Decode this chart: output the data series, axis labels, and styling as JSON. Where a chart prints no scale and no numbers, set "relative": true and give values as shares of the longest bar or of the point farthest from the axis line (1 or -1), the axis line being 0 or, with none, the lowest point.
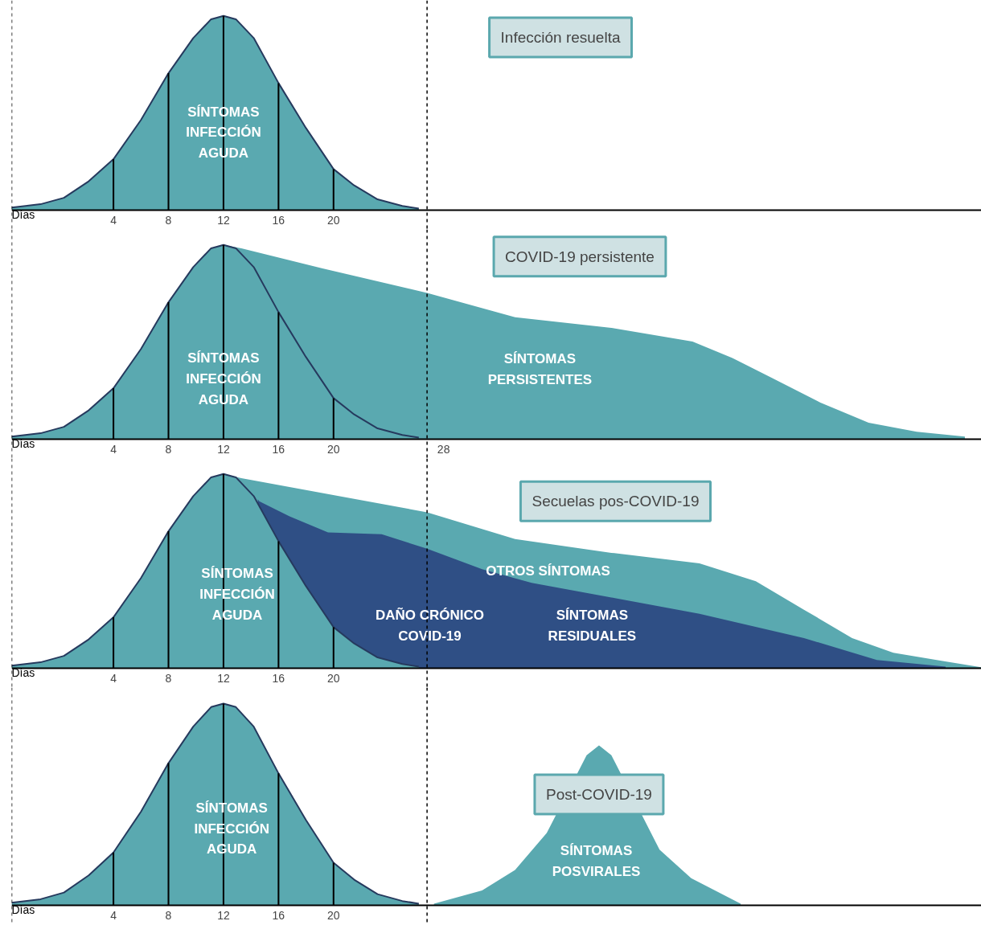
{
  "chart_data": [
    {
      "type": "area",
      "title": "Infección resuelta",
      "xlabel": "Días",
      "relative": true,
      "xlim": [
        -3.4,
        67.1
      ],
      "xticks": [
        4,
        8,
        12,
        16,
        20
      ],
      "series": [
        {
          "color": "#5aa9b0",
          "x": [
            -3.4,
            -1.3,
            0.4,
            2.2,
            4,
            6,
            8,
            9.8,
            11.1,
            12,
            12.9,
            14.2,
            16,
            18,
            20,
            21.5,
            23.2,
            25,
            26.2
          ],
          "values": [
            0.013,
            0.03,
            0.063,
            0.148,
            0.262,
            0.464,
            0.705,
            0.886,
            0.983,
            1,
            0.983,
            0.886,
            0.654,
            0.422,
            0.211,
            0.127,
            0.055,
            0.021,
            0.008
          ]
        },
        {
          "type": "bar",
          "color": "#000000",
          "x": [
            4,
            8,
            12,
            16,
            20
          ],
          "values": [
            0.262,
            0.705,
            1,
            0.654,
            0.211
          ]
        }
      ],
      "annotations": [
        "SÍNTOMAS\nINFECCIÓN\nAGUDA"
      ],
      "ref_lines": [
        {
          "axis": "x",
          "value": -3.4,
          "line_style": "dashed"
        },
        {
          "axis": "x",
          "value": 26.8,
          "line_style": "dashed"
        }
      ]
    },
    {
      "type": "area",
      "title": "COVID-19 persistente",
      "xlabel": "Días",
      "relative": true,
      "xlim": [
        -3.4,
        67.1
      ],
      "xticks": [
        4,
        8,
        12,
        16,
        20,
        28
      ],
      "series": [
        {
          "color": "#5aa9b0",
          "x": [
            12,
            13.3,
            19.2,
            26.8,
            33.2,
            40.2,
            46.1,
            49,
            51.9,
            55.4,
            58.9,
            62.4,
            65.9
          ],
          "values": [
            1,
            0.983,
            0.879,
            0.753,
            0.628,
            0.573,
            0.502,
            0.418,
            0.314,
            0.188,
            0.084,
            0.038,
            0.013
          ]
        },
        {
          "color": "#5aa9b0",
          "x": [
            -3.4,
            -1.3,
            0.4,
            2.2,
            4,
            6,
            8,
            9.8,
            11.1,
            12,
            12.9,
            14.2,
            16,
            18,
            20,
            21.5,
            23.2,
            25,
            26.2
          ],
          "values": [
            0.013,
            0.03,
            0.063,
            0.148,
            0.262,
            0.464,
            0.705,
            0.886,
            0.983,
            1,
            0.983,
            0.886,
            0.654,
            0.422,
            0.211,
            0.127,
            0.055,
            0.021,
            0.008
          ]
        },
        {
          "type": "bar",
          "color": "#000000",
          "x": [
            4,
            8,
            12,
            16,
            20
          ],
          "values": [
            0.262,
            0.705,
            1,
            0.654,
            0.211
          ]
        }
      ],
      "annotations": [
        "SÍNTOMAS\nINFECCIÓN\nAGUDA",
        "SÍNTOMAS\nPERSISTENTES"
      ],
      "ref_lines": [
        {
          "axis": "x",
          "value": -3.4,
          "line_style": "dashed"
        },
        {
          "axis": "x",
          "value": 26.8,
          "line_style": "dashed"
        }
      ]
    },
    {
      "type": "area",
      "title": "Secuelas pos-COVID-19",
      "xlabel": "Días",
      "relative": true,
      "xlim": [
        -3.4,
        67.1
      ],
      "xticks": [
        4,
        8,
        12,
        16,
        20
      ],
      "series": [
        {
          "color": "#5aa9b0",
          "x": [
            12,
            13.3,
            20.3,
            26.8,
            33.2,
            40.2,
            46.6,
            50.7,
            54.2,
            57.7,
            60.7,
            64.2,
            67.1
          ],
          "values": [
            1,
            0.979,
            0.887,
            0.803,
            0.665,
            0.594,
            0.54,
            0.448,
            0.301,
            0.155,
            0.079,
            0.038,
            0.004
          ]
        },
        {
          "color": "#2f4f85",
          "x": [
            14.5,
            14.6,
            16.8,
            19.6,
            23.5,
            26.8,
            30.8,
            34.4,
            40.2,
            46.6,
            54.2,
            59.5,
            64.5
          ],
          "values": [
            0.87,
            0.86,
            0.782,
            0.699,
            0.69,
            0.615,
            0.51,
            0.439,
            0.364,
            0.28,
            0.155,
            0.042,
            0.008
          ]
        },
        {
          "color": "#5aa9b0",
          "x": [
            -3.4,
            -1.3,
            0.4,
            2.2,
            4,
            6,
            8,
            9.8,
            11.1,
            12,
            12.9,
            14.2,
            16,
            18,
            20,
            21.5,
            23.2,
            25,
            26.2
          ],
          "values": [
            0.013,
            0.03,
            0.063,
            0.148,
            0.262,
            0.464,
            0.705,
            0.886,
            0.983,
            1,
            0.983,
            0.886,
            0.654,
            0.422,
            0.211,
            0.127,
            0.055,
            0.021,
            0.008
          ]
        },
        {
          "type": "bar",
          "color": "#000000",
          "x": [
            4,
            8,
            12,
            16,
            20
          ],
          "values": [
            0.262,
            0.705,
            1,
            0.654,
            0.211
          ]
        }
      ],
      "annotations": [
        "SÍNTOMAS\nINFECCIÓN\nAGUDA",
        "OTROS SÍNTOMAS",
        "DAÑO CRÓNICO\nCOVID-19",
        "SÍNTOMAS\nRESIDUALES"
      ],
      "ref_lines": [
        {
          "axis": "x",
          "value": -3.4,
          "line_style": "dashed"
        },
        {
          "axis": "x",
          "value": 26.8,
          "line_style": "dashed"
        }
      ]
    },
    {
      "type": "area",
      "title": "Post-COVID-19",
      "xlabel": "Días",
      "relative": true,
      "xlim": [
        -3.4,
        67.1
      ],
      "xticks": [
        4,
        8,
        12,
        16,
        20
      ],
      "series": [
        {
          "color": "#5aa9b0",
          "x": [
            27.3,
            30.8,
            33.2,
            35.5,
            38.4,
            39.3,
            40.2,
            43.7,
            46,
            49.6
          ],
          "values": [
            0.008,
            0.073,
            0.175,
            0.358,
            0.744,
            0.793,
            0.744,
            0.276,
            0.134,
            0.008
          ]
        },
        {
          "color": "#5aa9b0",
          "x": [
            -3.4,
            -1.3,
            0.4,
            2.2,
            4,
            6,
            8,
            9.8,
            11.1,
            12,
            12.9,
            14.2,
            16,
            18,
            20,
            21.5,
            23.2,
            25,
            26.2
          ],
          "values": [
            0.013,
            0.03,
            0.063,
            0.148,
            0.262,
            0.464,
            0.705,
            0.886,
            0.983,
            1,
            0.983,
            0.886,
            0.654,
            0.422,
            0.211,
            0.127,
            0.055,
            0.021,
            0.008
          ]
        },
        {
          "type": "bar",
          "color": "#000000",
          "x": [
            4,
            8,
            12,
            16,
            20
          ],
          "values": [
            0.262,
            0.705,
            1,
            0.654,
            0.211
          ]
        }
      ],
      "annotations": [
        "SÍNTOMAS\nINFECCIÓN\nAGUDA",
        "SÍNTOMAS\nPOSVIRALES"
      ],
      "ref_lines": [
        {
          "axis": "x",
          "value": -3.4,
          "line_style": "dashed"
        },
        {
          "axis": "x",
          "value": 26.8,
          "line_style": "dashed"
        }
      ]
    }
  ]
}
